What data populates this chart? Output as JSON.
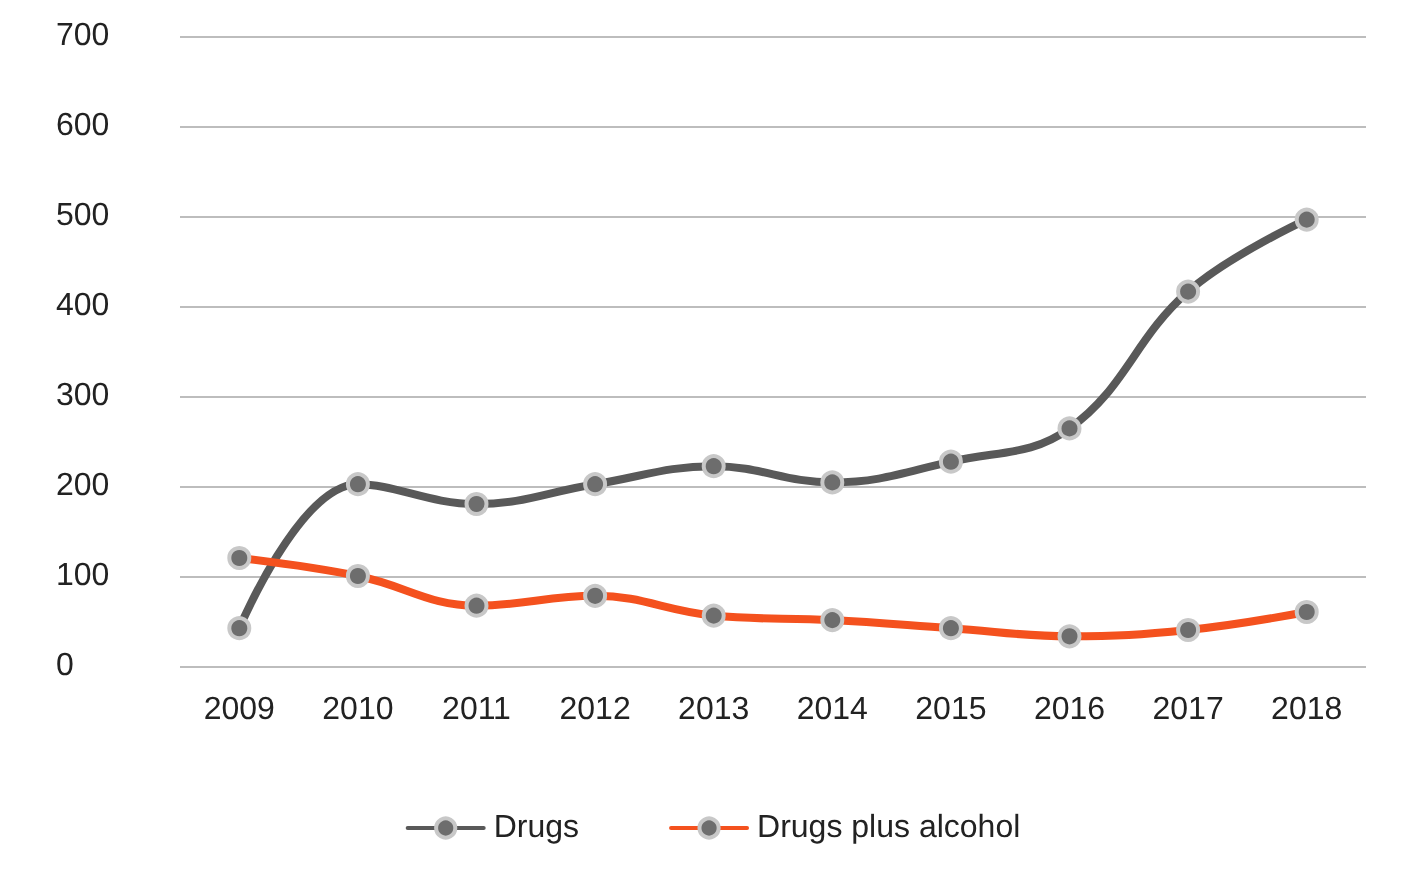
{
  "chart_data": {
    "type": "line",
    "categories": [
      "2009",
      "2010",
      "2011",
      "2012",
      "2013",
      "2014",
      "2015",
      "2016",
      "2017",
      "2018"
    ],
    "series": [
      {
        "name": "Drugs",
        "color": "#595959",
        "values": [
          42,
          202,
          180,
          202,
          222,
          204,
          227,
          264,
          416,
          496
        ]
      },
      {
        "name": "Drugs plus alcohol",
        "color": "#f4511e",
        "values": [
          120,
          100,
          67,
          78,
          56,
          51,
          42,
          33,
          40,
          60
        ]
      }
    ],
    "ylim": [
      0,
      700
    ],
    "yticks": [
      0,
      100,
      200,
      300,
      400,
      500,
      600,
      700
    ],
    "grid": "y",
    "legend": "bottom",
    "marker": "circle",
    "line_style": "solid"
  }
}
